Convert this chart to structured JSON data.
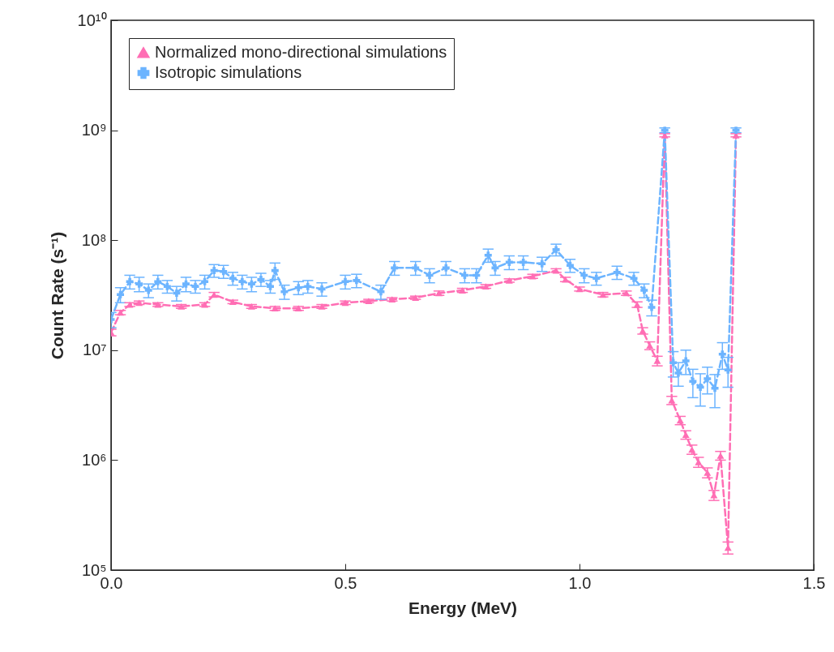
{
  "chart_data": {
    "type": "line",
    "xlabel": "Energy (MeV)",
    "ylabel": "Count Rate (s⁻¹)",
    "log": "y",
    "grid": false,
    "legend": "top left",
    "line_style": "dashed",
    "xlim": [
      0,
      1.5
    ],
    "xticks": [
      {
        "value": 0,
        "label": "0.0"
      },
      0.5,
      {
        "value": 1,
        "label": "1.0"
      },
      1.5
    ],
    "ylim": [
      100000,
      10000000000
    ],
    "yticks": [
      {
        "value": 100000,
        "label": "10⁵"
      },
      {
        "value": 1000000,
        "label": "10⁶"
      },
      {
        "value": 10000000,
        "label": "10⁷"
      },
      {
        "value": 100000000,
        "label": "10⁸"
      },
      {
        "value": 1000000000,
        "label": "10⁹"
      },
      {
        "value": 10000000000,
        "label": "10¹⁰"
      }
    ],
    "series": [
      {
        "name": "Normalized mono-directional simulations",
        "color": "#ff6eb4",
        "marker": "triangle",
        "x": [
          0,
          0.02,
          0.04,
          0.06,
          0.1,
          0.15,
          0.2,
          0.22,
          0.26,
          0.3,
          0.35,
          0.4,
          0.45,
          0.5,
          0.55,
          0.6,
          0.65,
          0.7,
          0.75,
          0.8,
          0.85,
          0.9,
          0.95,
          0.97,
          1.0,
          1.05,
          1.1,
          1.123,
          1.135,
          1.15,
          1.166,
          1.182,
          1.197,
          1.215,
          1.227,
          1.24,
          1.254,
          1.273,
          1.287,
          1.301,
          1.317,
          1.334
        ],
        "values": [
          14500000,
          22000000,
          26000000,
          27000000,
          26000000,
          25000000,
          26000000,
          32000000,
          27500000,
          25000000,
          24000000,
          24000000,
          25000000,
          27000000,
          28000000,
          29000000,
          30000000,
          33000000,
          35000000,
          38000000,
          43000000,
          47000000,
          53000000,
          44000000,
          36000000,
          32000000,
          33000000,
          26000000,
          15000000,
          11000000,
          8000000,
          900000000,
          3500000,
          2300000,
          1700000,
          1250000,
          960000,
          770000,
          480000,
          1100000,
          160000,
          900000000
        ],
        "errors": [
          1000000,
          1000000,
          1000000,
          1000000,
          1000000,
          1000000,
          1000000,
          1500000,
          1000000,
          1000000,
          1000000,
          1000000,
          1000000,
          1000000,
          1000000,
          1000000,
          1000000,
          1500000,
          1500000,
          1500000,
          1500000,
          2000000,
          2000000,
          2000000,
          1500000,
          1500000,
          1500000,
          1500000,
          1000000,
          900000,
          800000,
          30000000,
          300000,
          200000,
          150000,
          120000,
          100000,
          80000,
          50000,
          100000,
          20000,
          30000000
        ]
      },
      {
        "name": "Isotropic simulations",
        "color": "#6cb4ff",
        "marker": "cross",
        "x": [
          0,
          0.02,
          0.04,
          0.06,
          0.08,
          0.1,
          0.12,
          0.14,
          0.16,
          0.18,
          0.2,
          0.22,
          0.24,
          0.26,
          0.28,
          0.3,
          0.32,
          0.34,
          0.35,
          0.37,
          0.4,
          0.42,
          0.45,
          0.5,
          0.524,
          0.576,
          0.605,
          0.65,
          0.68,
          0.715,
          0.755,
          0.78,
          0.805,
          0.82,
          0.85,
          0.88,
          0.92,
          0.95,
          0.98,
          1.01,
          1.036,
          1.08,
          1.116,
          1.138,
          1.154,
          1.182,
          1.2,
          1.211,
          1.227,
          1.242,
          1.258,
          1.273,
          1.289,
          1.305,
          1.317,
          1.334
        ],
        "values": [
          19000000,
          32000000,
          42000000,
          40000000,
          35000000,
          42000000,
          38000000,
          33000000,
          40000000,
          38000000,
          42000000,
          53000000,
          52000000,
          45000000,
          42000000,
          40000000,
          44000000,
          38000000,
          53000000,
          34000000,
          37000000,
          38000000,
          36000000,
          42000000,
          43000000,
          34000000,
          56000000,
          56000000,
          48000000,
          56000000,
          48000000,
          48000000,
          73000000,
          56000000,
          63000000,
          63000000,
          61000000,
          82000000,
          59000000,
          48000000,
          45000000,
          51000000,
          45000000,
          35000000,
          24500000,
          1000000000,
          7700000,
          6200000,
          8000000,
          5200000,
          4600000,
          5500000,
          4500000,
          9200000,
          6600000,
          1000000000
        ],
        "errors": [
          3000000,
          5000000,
          6000000,
          6000000,
          5000000,
          6000000,
          5000000,
          5000000,
          6000000,
          5000000,
          6000000,
          7000000,
          7000000,
          6000000,
          6000000,
          6000000,
          6000000,
          5000000,
          9000000,
          5000000,
          5000000,
          5000000,
          5000000,
          6000000,
          6000000,
          5000000,
          8000000,
          8000000,
          7000000,
          8000000,
          7000000,
          7000000,
          10000000,
          8000000,
          9000000,
          9000000,
          9000000,
          10000000,
          8000000,
          7000000,
          6000000,
          7000000,
          6000000,
          5000000,
          4000000,
          50000000,
          2000000,
          1500000,
          2000000,
          1500000,
          1500000,
          1500000,
          1500000,
          2500000,
          2000000,
          50000000
        ]
      }
    ]
  }
}
